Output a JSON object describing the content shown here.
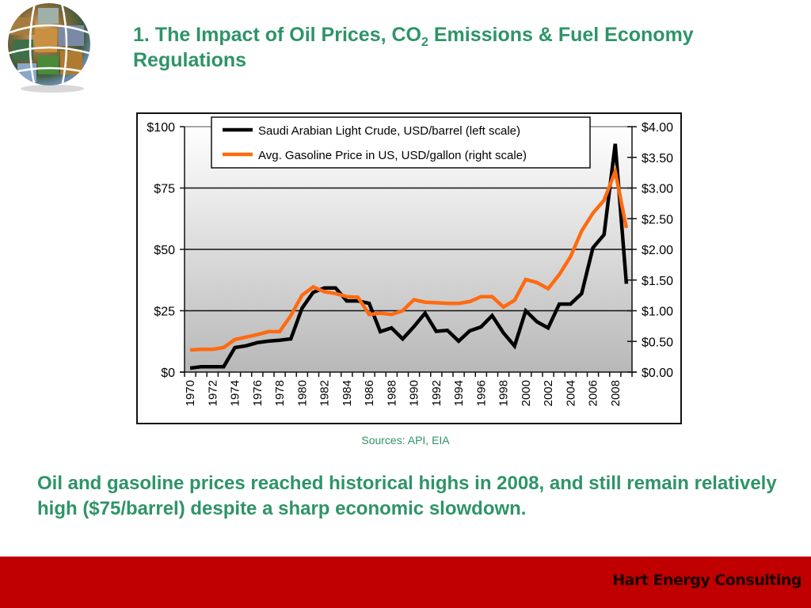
{
  "slide": {
    "title_part1": "1. The Impact of Oil Prices, CO",
    "title_sub": "2",
    "title_part2": " Emissions & Fuel Economy Regulations",
    "sources": "Sources: API, EIA",
    "body_text": "Oil and gasoline prices reached historical highs in 2008, and still remain relatively high ($75/barrel) despite a sharp economic slowdown.",
    "footer": "Hart Energy Consulting",
    "logo": "globe-photo-collage-logo"
  },
  "colors": {
    "title_green": "#2e9467",
    "footer_red": "#c00000",
    "crude_line": "#000000",
    "gasoline_line": "#ff6a10"
  },
  "chart_data": {
    "type": "line",
    "title": "",
    "xlabel": "",
    "ylabel": "",
    "x": [
      1970,
      1971,
      1972,
      1973,
      1974,
      1975,
      1976,
      1977,
      1978,
      1979,
      1980,
      1981,
      1982,
      1983,
      1984,
      1985,
      1986,
      1987,
      1988,
      1989,
      1990,
      1991,
      1992,
      1993,
      1994,
      1995,
      1996,
      1997,
      1998,
      1999,
      2000,
      2001,
      2002,
      2003,
      2004,
      2005,
      2006,
      2007,
      2008,
      2009
    ],
    "x_tick_labels": [
      "1970",
      "1972",
      "1974",
      "1976",
      "1978",
      "1980",
      "1982",
      "1984",
      "1986",
      "1988",
      "1990",
      "1992",
      "1994",
      "1996",
      "1998",
      "2000",
      "2002",
      "2004",
      "2006",
      "2008"
    ],
    "left_axis": {
      "ylim": [
        0,
        100
      ],
      "tick_labels": [
        "$0",
        "$25",
        "$50",
        "$75",
        "$100"
      ],
      "ticks": [
        0,
        25,
        50,
        75,
        100
      ]
    },
    "right_axis": {
      "ylim": [
        0,
        4
      ],
      "tick_labels": [
        "$0.00",
        "$0.50",
        "$1.00",
        "$1.50",
        "$2.00",
        "$2.50",
        "$3.00",
        "$3.50",
        "$4.00"
      ],
      "ticks": [
        0,
        0.5,
        1,
        1.5,
        2,
        2.5,
        3,
        3.5,
        4
      ]
    },
    "grid": "horizontal at left-axis ticks",
    "background": "vertical gradient white to grey",
    "legend_position": "top-center",
    "series": [
      {
        "name": "Saudi Arabian Light Crude, USD/barrel (left scale)",
        "axis": "left",
        "color": "#000000",
        "values": [
          1.6,
          2.2,
          2.2,
          2.2,
          10,
          10.7,
          12,
          12.6,
          13,
          13.5,
          26,
          32.5,
          34.3,
          34.3,
          29,
          29,
          28,
          16.5,
          18,
          13.5,
          18.5,
          24,
          16.6,
          17,
          12.6,
          16.8,
          18.4,
          23,
          16,
          10.6,
          25,
          20.5,
          18,
          27.7,
          27.7,
          32,
          50.6,
          56,
          93,
          36
        ]
      },
      {
        "name": "Avg. Gasoline Price in US, USD/gallon (right scale)",
        "axis": "right",
        "color": "#ff6a10",
        "values": [
          0.36,
          0.37,
          0.37,
          0.4,
          0.53,
          0.57,
          0.61,
          0.66,
          0.66,
          0.92,
          1.25,
          1.39,
          1.31,
          1.28,
          1.23,
          1.22,
          0.94,
          0.96,
          0.94,
          1.0,
          1.18,
          1.14,
          1.13,
          1.12,
          1.12,
          1.15,
          1.23,
          1.23,
          1.06,
          1.17,
          1.51,
          1.46,
          1.36,
          1.59,
          1.88,
          2.3,
          2.59,
          2.8,
          3.27,
          2.35
        ]
      }
    ]
  }
}
